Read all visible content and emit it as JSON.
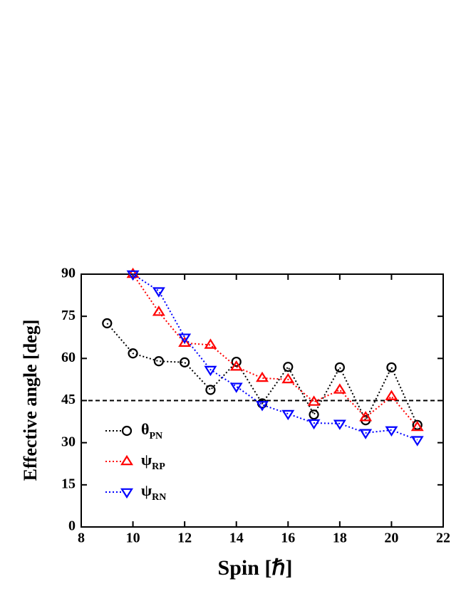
{
  "chart_data": {
    "type": "line",
    "xlabel": "Spin [ℏ]",
    "ylabel": "Effective angle [deg]",
    "x": [
      9,
      10,
      11,
      12,
      13,
      14,
      15,
      16,
      17,
      18,
      19,
      20,
      21
    ],
    "series": [
      {
        "name": "θPN",
        "color": "#000000",
        "marker": "circle",
        "values": [
          72.5,
          61.8,
          59,
          58.6,
          48.8,
          58.8,
          44,
          57,
          40,
          56.8,
          38,
          56.8,
          36.3
        ]
      },
      {
        "name": "ψRP",
        "color": "#ff0000",
        "marker": "triangle-up",
        "values": [
          null,
          90,
          76.5,
          65.5,
          64.8,
          57,
          53,
          52.5,
          44.5,
          48.8,
          39,
          46.5,
          35.5
        ]
      },
      {
        "name": "ψRN",
        "color": "#0000ff",
        "marker": "triangle-down",
        "values": [
          null,
          90,
          84,
          67.5,
          56,
          50,
          43.5,
          40.3,
          37,
          36.8,
          33.5,
          34.5,
          31
        ]
      }
    ],
    "hline": 45,
    "xlim": [
      8,
      22
    ],
    "xticks": [
      8,
      10,
      12,
      14,
      16,
      18,
      20,
      22
    ],
    "ylim": [
      0,
      90
    ],
    "yticks": [
      0,
      15,
      30,
      45,
      60,
      75,
      90
    ],
    "legend": "lower-left"
  }
}
